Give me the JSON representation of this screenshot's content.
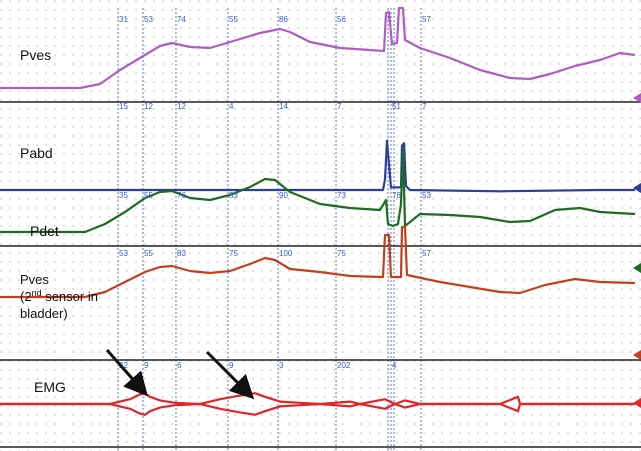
{
  "chart_data": {
    "type": "line",
    "x_unit": "sample",
    "x_range": [
      0,
      640
    ],
    "panels": [
      {
        "label": "Pves",
        "color": "#b15bc4",
        "marker_values": [
          "31",
          "53",
          "74",
          "55",
          "86",
          "56",
          "",
          "57"
        ],
        "series": [
          {
            "x": 0,
            "y": 0
          },
          {
            "x": 80,
            "y": 0
          },
          {
            "x": 100,
            "y": 4
          },
          {
            "x": 120,
            "y": 18
          },
          {
            "x": 140,
            "y": 30
          },
          {
            "x": 160,
            "y": 42
          },
          {
            "x": 172,
            "y": 45
          },
          {
            "x": 190,
            "y": 41
          },
          {
            "x": 210,
            "y": 40
          },
          {
            "x": 230,
            "y": 46
          },
          {
            "x": 260,
            "y": 55
          },
          {
            "x": 280,
            "y": 59
          },
          {
            "x": 290,
            "y": 56
          },
          {
            "x": 310,
            "y": 46
          },
          {
            "x": 340,
            "y": 40
          },
          {
            "x": 370,
            "y": 38
          },
          {
            "x": 384,
            "y": 37
          },
          {
            "x": 386,
            "y": 75
          },
          {
            "x": 389,
            "y": 76
          },
          {
            "x": 392,
            "y": 44
          },
          {
            "x": 397,
            "y": 45
          },
          {
            "x": 399,
            "y": 80
          },
          {
            "x": 403,
            "y": 80
          },
          {
            "x": 405,
            "y": 48
          },
          {
            "x": 420,
            "y": 40
          },
          {
            "x": 450,
            "y": 30
          },
          {
            "x": 480,
            "y": 18
          },
          {
            "x": 510,
            "y": 10
          },
          {
            "x": 530,
            "y": 9
          },
          {
            "x": 550,
            "y": 14
          },
          {
            "x": 575,
            "y": 22
          },
          {
            "x": 600,
            "y": 28
          },
          {
            "x": 620,
            "y": 35
          },
          {
            "x": 635,
            "y": 33
          }
        ]
      },
      {
        "label": "Pabd",
        "color": "#2c3e9e",
        "marker_values": [
          "15",
          "12",
          "12",
          "4",
          "14",
          "7",
          "51",
          "7"
        ],
        "series": [
          {
            "x": 0,
            "y": 0
          },
          {
            "x": 383,
            "y": 0
          },
          {
            "x": 385,
            "y": 8
          },
          {
            "x": 387,
            "y": 38
          },
          {
            "x": 389,
            "y": 20
          },
          {
            "x": 391,
            "y": 2
          },
          {
            "x": 401,
            "y": 2
          },
          {
            "x": 402,
            "y": 34
          },
          {
            "x": 404,
            "y": 36
          },
          {
            "x": 406,
            "y": 3
          },
          {
            "x": 410,
            "y": 0
          },
          {
            "x": 500,
            "y": -1
          },
          {
            "x": 600,
            "y": 0
          },
          {
            "x": 635,
            "y": 0
          }
        ]
      },
      {
        "label": "Pdet",
        "color": "#1f6b1f",
        "marker_values": [
          "35",
          "55",
          "76",
          "53",
          "90",
          "73",
          "78",
          "53"
        ],
        "series": [
          {
            "x": 0,
            "y": 0
          },
          {
            "x": 85,
            "y": 0
          },
          {
            "x": 105,
            "y": 8
          },
          {
            "x": 125,
            "y": 20
          },
          {
            "x": 145,
            "y": 34
          },
          {
            "x": 160,
            "y": 40
          },
          {
            "x": 172,
            "y": 41
          },
          {
            "x": 190,
            "y": 34
          },
          {
            "x": 210,
            "y": 32
          },
          {
            "x": 230,
            "y": 37
          },
          {
            "x": 250,
            "y": 45
          },
          {
            "x": 265,
            "y": 53
          },
          {
            "x": 275,
            "y": 52
          },
          {
            "x": 290,
            "y": 40
          },
          {
            "x": 320,
            "y": 28
          },
          {
            "x": 350,
            "y": 24
          },
          {
            "x": 380,
            "y": 22
          },
          {
            "x": 386,
            "y": 32
          },
          {
            "x": 388,
            "y": 8
          },
          {
            "x": 393,
            "y": 6
          },
          {
            "x": 398,
            "y": 8
          },
          {
            "x": 401,
            "y": 28
          },
          {
            "x": 403,
            "y": 82
          },
          {
            "x": 405,
            "y": 6
          },
          {
            "x": 420,
            "y": 18
          },
          {
            "x": 450,
            "y": 17
          },
          {
            "x": 480,
            "y": 15
          },
          {
            "x": 510,
            "y": 10
          },
          {
            "x": 530,
            "y": 11
          },
          {
            "x": 555,
            "y": 22
          },
          {
            "x": 580,
            "y": 24
          },
          {
            "x": 600,
            "y": 20
          },
          {
            "x": 635,
            "y": 18
          }
        ]
      },
      {
        "label": "Pves\n(2nd sensor in\nbladder)",
        "color": "#c4401c",
        "marker_values": [
          "53",
          "55",
          "83",
          "75",
          "100",
          "75",
          "",
          "57"
        ],
        "series": [
          {
            "x": 0,
            "y": 0
          },
          {
            "x": 85,
            "y": 0
          },
          {
            "x": 105,
            "y": 5
          },
          {
            "x": 125,
            "y": 15
          },
          {
            "x": 145,
            "y": 25
          },
          {
            "x": 160,
            "y": 30
          },
          {
            "x": 172,
            "y": 31
          },
          {
            "x": 190,
            "y": 26
          },
          {
            "x": 210,
            "y": 24
          },
          {
            "x": 230,
            "y": 26
          },
          {
            "x": 250,
            "y": 33
          },
          {
            "x": 265,
            "y": 39
          },
          {
            "x": 275,
            "y": 37
          },
          {
            "x": 290,
            "y": 28
          },
          {
            "x": 320,
            "y": 25
          },
          {
            "x": 350,
            "y": 21
          },
          {
            "x": 383,
            "y": 20
          },
          {
            "x": 385,
            "y": 62
          },
          {
            "x": 389,
            "y": 62
          },
          {
            "x": 391,
            "y": 20
          },
          {
            "x": 401,
            "y": 20
          },
          {
            "x": 402,
            "y": 70
          },
          {
            "x": 405,
            "y": 70
          },
          {
            "x": 407,
            "y": 22
          },
          {
            "x": 440,
            "y": 15
          },
          {
            "x": 470,
            "y": 10
          },
          {
            "x": 500,
            "y": 5
          },
          {
            "x": 520,
            "y": 4
          },
          {
            "x": 545,
            "y": 12
          },
          {
            "x": 575,
            "y": 18
          },
          {
            "x": 600,
            "y": 15
          },
          {
            "x": 635,
            "y": 14
          }
        ]
      },
      {
        "label": "EMG",
        "color": "#e0262a",
        "marker_values": [
          "22",
          "9",
          "6",
          "9",
          "3",
          "202",
          "4",
          ""
        ],
        "series": [
          {
            "x": 0,
            "y": 0
          },
          {
            "x": 110,
            "y": 0
          },
          {
            "x": 120,
            "y": 2
          },
          {
            "x": 130,
            "y": 4
          },
          {
            "x": 140,
            "y": 8
          },
          {
            "x": 145,
            "y": 9
          },
          {
            "x": 150,
            "y": 6
          },
          {
            "x": 160,
            "y": 3
          },
          {
            "x": 175,
            "y": 1
          },
          {
            "x": 200,
            "y": 0
          },
          {
            "x": 220,
            "y": 4
          },
          {
            "x": 240,
            "y": 7
          },
          {
            "x": 255,
            "y": 9
          },
          {
            "x": 265,
            "y": 6
          },
          {
            "x": 280,
            "y": 2
          },
          {
            "x": 300,
            "y": 1
          },
          {
            "x": 320,
            "y": 0
          },
          {
            "x": 350,
            "y": 2
          },
          {
            "x": 360,
            "y": 0
          },
          {
            "x": 385,
            "y": 4
          },
          {
            "x": 395,
            "y": 0
          },
          {
            "x": 405,
            "y": 3
          },
          {
            "x": 420,
            "y": 0
          },
          {
            "x": 500,
            "y": 0
          },
          {
            "x": 518,
            "y": 6
          },
          {
            "x": 520,
            "y": 0
          },
          {
            "x": 620,
            "y": 0
          },
          {
            "x": 635,
            "y": 0
          }
        ]
      }
    ],
    "markers": [
      {
        "name": "arrow-1",
        "points_to": "EMG burst"
      },
      {
        "name": "arrow-2",
        "points_to": "EMG burst"
      }
    ],
    "grid": true,
    "legend": "none"
  }
}
